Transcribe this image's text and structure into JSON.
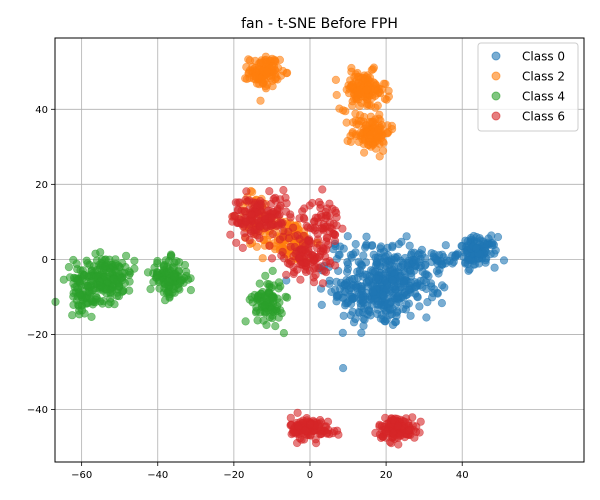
{
  "chart_data": {
    "type": "scatter",
    "title": "fan - t-SNE Before FPH",
    "xlabel": "",
    "ylabel": "",
    "xlim": [
      -67,
      72
    ],
    "ylim": [
      -54,
      59
    ],
    "xticks": [
      -60,
      -40,
      -20,
      0,
      20,
      40
    ],
    "yticks": [
      -40,
      -20,
      0,
      20,
      40
    ],
    "grid": true,
    "legend_position": "top-right",
    "series": [
      {
        "name": "Class 0",
        "color": "#1f77b4",
        "clusters": [
          {
            "cx": 18,
            "cy": -8,
            "sx": 6,
            "sy": 5,
            "n": 320
          },
          {
            "cx": 26,
            "cy": -4,
            "sx": 5,
            "sy": 4,
            "n": 80
          },
          {
            "cx": 44,
            "cy": 2,
            "sx": 2.5,
            "sy": 2,
            "n": 110
          },
          {
            "cx": 34,
            "cy": 0,
            "sx": 4,
            "sy": 1,
            "n": 30
          },
          {
            "cx": 12,
            "cy": 2,
            "sx": 4,
            "sy": 2,
            "n": 30
          }
        ]
      },
      {
        "name": "Class 2",
        "color": "#ff7f0e",
        "clusters": [
          {
            "cx": -12,
            "cy": 50,
            "sx": 2,
            "sy": 2,
            "n": 110
          },
          {
            "cx": 14,
            "cy": 45,
            "sx": 3,
            "sy": 2.5,
            "n": 130
          },
          {
            "cx": 16,
            "cy": 34,
            "sx": 2.5,
            "sy": 2.5,
            "n": 110
          },
          {
            "cx": -6,
            "cy": 5,
            "sx": 3.5,
            "sy": 3,
            "n": 120
          },
          {
            "cx": -14,
            "cy": 12,
            "sx": 2.5,
            "sy": 3,
            "n": 40
          }
        ]
      },
      {
        "name": "Class 4",
        "color": "#2ca02c",
        "clusters": [
          {
            "cx": -54,
            "cy": -5,
            "sx": 4,
            "sy": 3,
            "n": 200
          },
          {
            "cx": -59,
            "cy": -10,
            "sx": 2,
            "sy": 2,
            "n": 40
          },
          {
            "cx": -37,
            "cy": -5,
            "sx": 2.5,
            "sy": 2.5,
            "n": 110
          },
          {
            "cx": -11,
            "cy": -11,
            "sx": 2,
            "sy": 3,
            "n": 90
          }
        ]
      },
      {
        "name": "Class 6",
        "color": "#d62728",
        "clusters": [
          {
            "cx": -13,
            "cy": 11,
            "sx": 4,
            "sy": 3,
            "n": 150
          },
          {
            "cx": -1,
            "cy": 1,
            "sx": 3,
            "sy": 3,
            "n": 100
          },
          {
            "cx": 3,
            "cy": 10,
            "sx": 2.5,
            "sy": 3,
            "n": 60
          },
          {
            "cx": -1,
            "cy": -45,
            "sx": 2,
            "sy": 1.5,
            "n": 110
          },
          {
            "cx": 5,
            "cy": -46,
            "sx": 1.5,
            "sy": 0.6,
            "n": 15
          },
          {
            "cx": 23,
            "cy": -45,
            "sx": 2.5,
            "sy": 1.5,
            "n": 130
          }
        ]
      }
    ]
  }
}
